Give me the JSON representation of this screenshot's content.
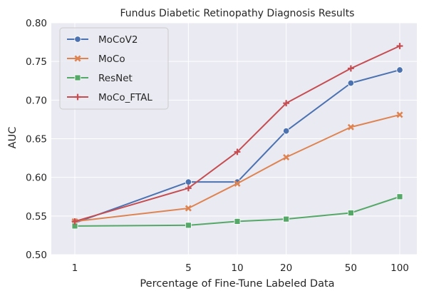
{
  "chart_data": {
    "type": "line",
    "title": "Fundus Diabetic Retinopathy Diagnosis Results",
    "xlabel": "Percentage of Fine-Tune Labeled Data",
    "ylabel": "AUC",
    "x": [
      1,
      5,
      10,
      20,
      50,
      100
    ],
    "x_tick_labels": [
      "1",
      "5",
      "10",
      "20",
      "50",
      "100"
    ],
    "x_scale": "log",
    "ylim": [
      0.5,
      0.8
    ],
    "y_ticks": [
      0.5,
      0.55,
      0.6,
      0.65,
      0.7,
      0.75,
      0.8
    ],
    "y_tick_labels": [
      "0.50",
      "0.55",
      "0.60",
      "0.65",
      "0.70",
      "0.75",
      "0.80"
    ],
    "grid": true,
    "legend_position": "top-left",
    "series": [
      {
        "name": "MoCoV2",
        "color": "#4c72b0",
        "marker": "circle",
        "values": [
          0.541,
          0.594,
          0.594,
          0.66,
          0.722,
          0.739
        ]
      },
      {
        "name": "MoCo",
        "color": "#dd8452",
        "marker": "x",
        "values": [
          0.543,
          0.56,
          0.592,
          0.626,
          0.665,
          0.681
        ]
      },
      {
        "name": "ResNet",
        "color": "#55a868",
        "marker": "square",
        "values": [
          0.537,
          0.538,
          0.543,
          0.546,
          0.554,
          0.575
        ]
      },
      {
        "name": "MoCo_FTAL",
        "color": "#c44e52",
        "marker": "plus",
        "values": [
          0.543,
          0.586,
          0.633,
          0.696,
          0.741,
          0.77
        ]
      }
    ]
  }
}
